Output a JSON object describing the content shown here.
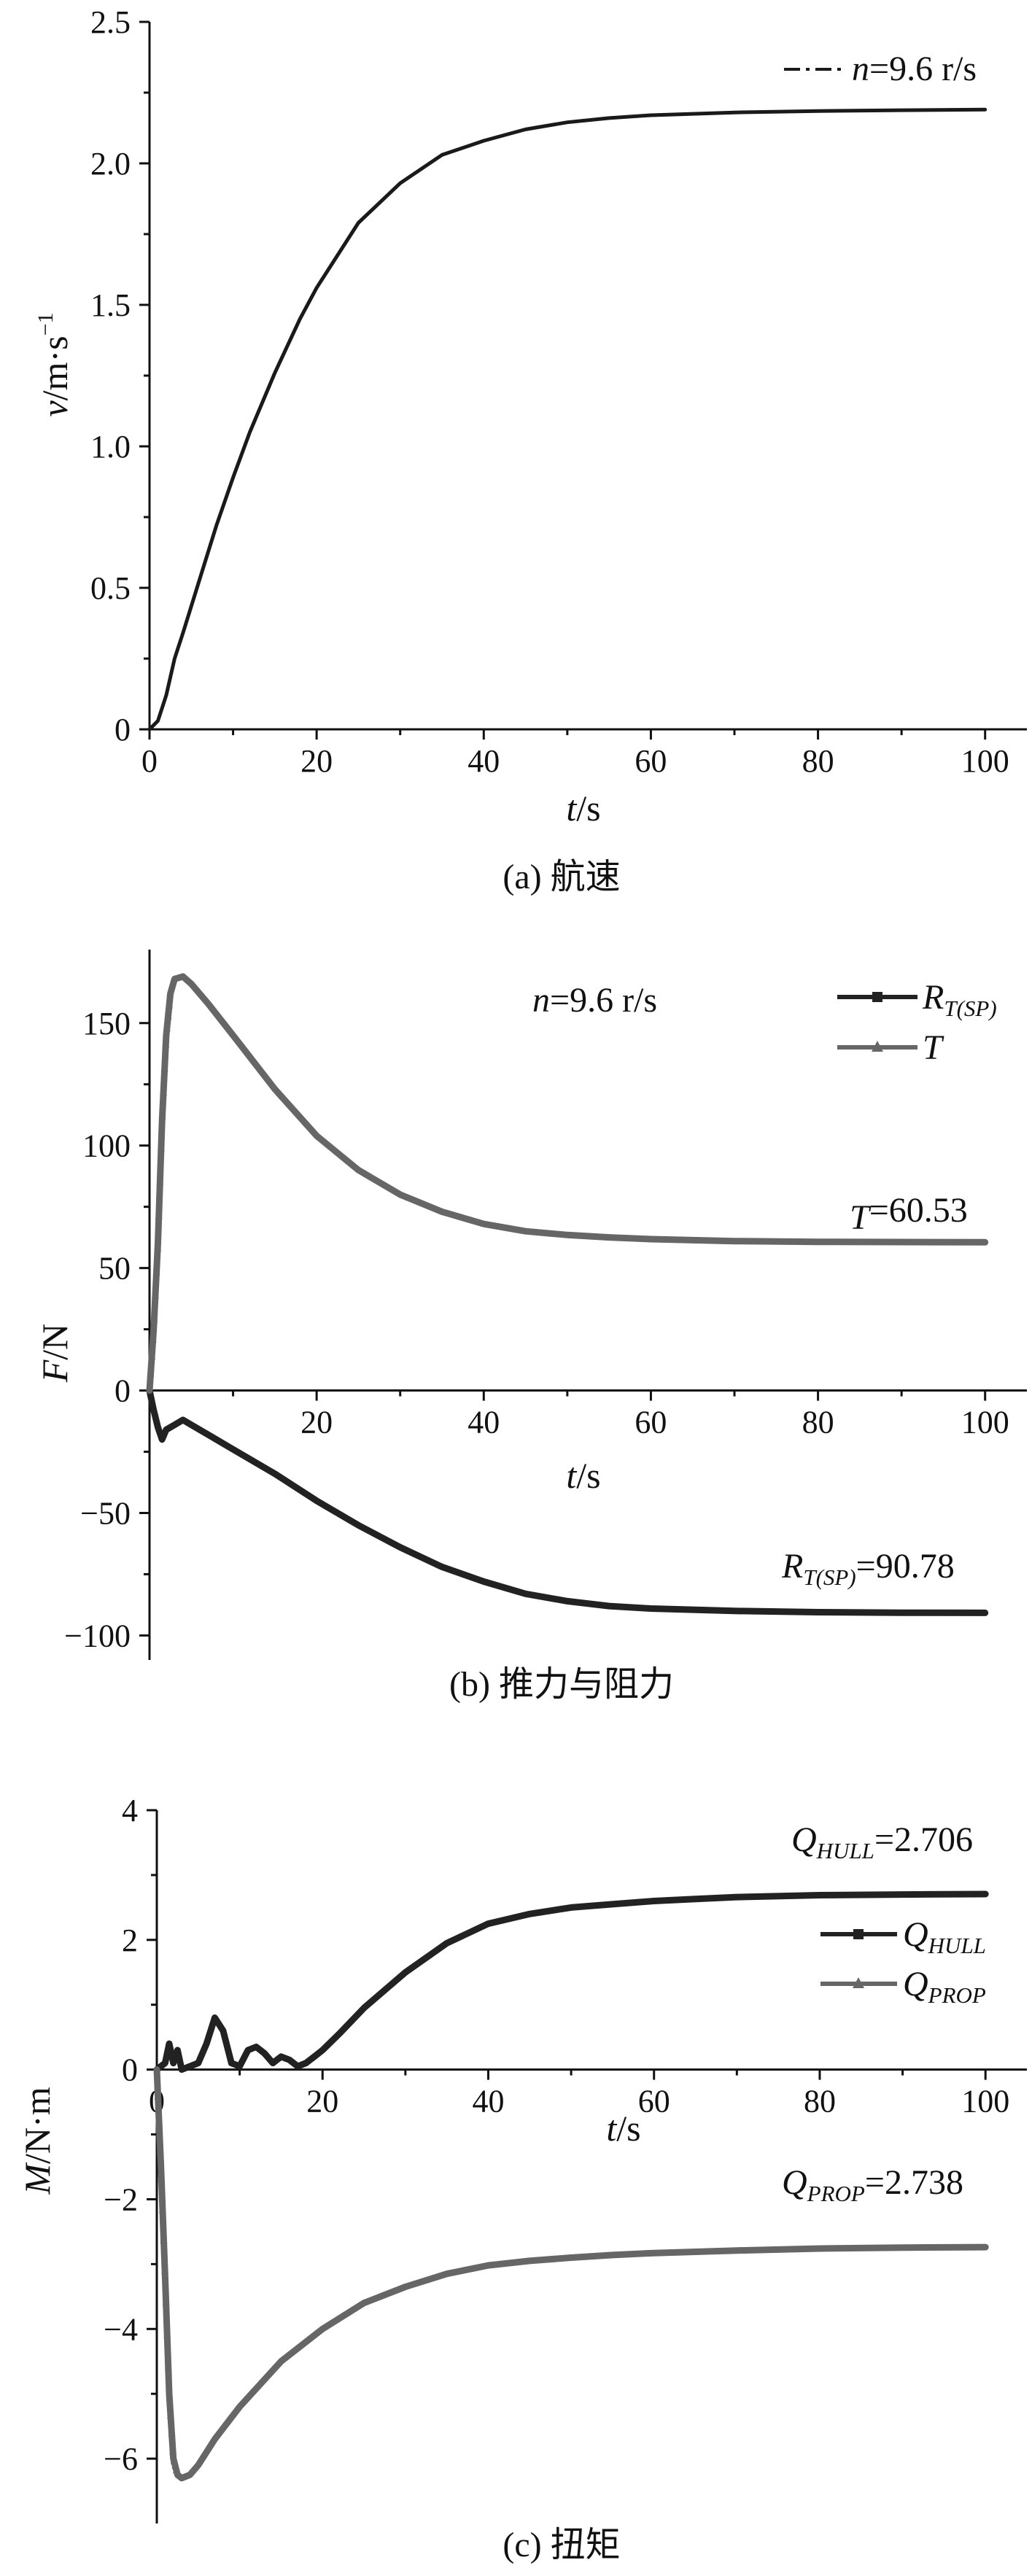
{
  "chart_data": [
    {
      "type": "line",
      "panel": "a",
      "caption": "(a) 航速",
      "xlabel": {
        "var": "t",
        "unit": "/s"
      },
      "ylabel": {
        "var": "v",
        "unit": "/m·s",
        "sup": "−1"
      },
      "xlim": [
        0,
        105
      ],
      "ylim": [
        0,
        2.5
      ],
      "xticks": [
        0,
        20,
        40,
        60,
        80,
        100
      ],
      "xtick_labels": [
        "0",
        "20",
        "40",
        "60",
        "80",
        "100"
      ],
      "yticks": [
        0,
        0.5,
        1.0,
        1.5,
        2.0,
        2.5
      ],
      "ytick_labels": [
        "0",
        "0.5",
        "1.0",
        "1.5",
        "2.0",
        "2.5"
      ],
      "legend": {
        "position": "top-right",
        "var": "n",
        "text": "=9.6 r/s"
      },
      "series": [
        {
          "name": "n=9.6 r/s",
          "color": "#1a1a1a",
          "style": "dash-dot",
          "x": [
            0,
            1,
            2,
            3,
            4,
            6,
            8,
            10,
            12,
            15,
            18,
            20,
            25,
            30,
            35,
            40,
            45,
            50,
            55,
            60,
            70,
            80,
            90,
            100
          ],
          "y": [
            0,
            0.03,
            0.12,
            0.25,
            0.34,
            0.53,
            0.72,
            0.89,
            1.05,
            1.26,
            1.45,
            1.56,
            1.79,
            1.93,
            2.03,
            2.08,
            2.12,
            2.145,
            2.16,
            2.17,
            2.18,
            2.185,
            2.188,
            2.19
          ]
        }
      ]
    },
    {
      "type": "line",
      "panel": "b",
      "caption": "(b) 推力与阻力",
      "xlabel": {
        "var": "t",
        "unit": "/s"
      },
      "ylabel": {
        "var": "F",
        "unit": "/N"
      },
      "xlim": [
        0,
        105
      ],
      "ylim": [
        -110,
        180
      ],
      "xticks": [
        20,
        40,
        60,
        80,
        100
      ],
      "xtick_labels": [
        "20",
        "40",
        "60",
        "80",
        "100"
      ],
      "yticks": [
        -100,
        -50,
        0,
        50,
        100,
        150
      ],
      "ytick_labels": [
        "−100",
        "−50",
        "0",
        "50",
        "100",
        "150"
      ],
      "annotation_top": {
        "var": "n",
        "text": "=9.6 r/s"
      },
      "legend": {
        "position": "top-right",
        "entries": [
          {
            "var": "R",
            "sub": "T(SP)"
          },
          {
            "var": "T",
            "sub": ""
          }
        ]
      },
      "value_labels": [
        {
          "var": "T",
          "sub": "",
          "text": "=60.53"
        },
        {
          "var": "R",
          "sub": "T(SP)",
          "text": "=90.78"
        }
      ],
      "series": [
        {
          "name": "R_T(SP)",
          "color": "#222222",
          "marker": "square",
          "x": [
            0,
            0.5,
            1,
            1.5,
            2,
            3,
            4,
            5,
            7,
            10,
            15,
            20,
            25,
            30,
            35,
            40,
            45,
            50,
            55,
            60,
            70,
            80,
            90,
            100
          ],
          "y": [
            0,
            -8,
            -15,
            -20,
            -16,
            -14,
            -12,
            -14,
            -18,
            -24,
            -34,
            -45,
            -55,
            -64,
            -72,
            -78,
            -83,
            -86,
            -88,
            -89,
            -90,
            -90.5,
            -90.7,
            -90.78
          ]
        },
        {
          "name": "T",
          "color": "#666666",
          "marker": "triangle",
          "x": [
            0,
            0.5,
            1,
            1.5,
            2,
            2.5,
            3,
            4,
            5,
            7,
            10,
            15,
            20,
            25,
            30,
            35,
            40,
            45,
            50,
            55,
            60,
            70,
            80,
            90,
            100
          ],
          "y": [
            0,
            25,
            60,
            110,
            145,
            162,
            168,
            169,
            166,
            158,
            145,
            123,
            104,
            90,
            80,
            73,
            68,
            65,
            63.5,
            62.5,
            61.8,
            61,
            60.7,
            60.6,
            60.53
          ]
        }
      ]
    },
    {
      "type": "line",
      "panel": "c",
      "caption": "(c) 扭矩",
      "xlabel": {
        "var": "t",
        "unit": "/s"
      },
      "ylabel": {
        "var": "M",
        "unit": "/N·m"
      },
      "xlim": [
        0,
        105
      ],
      "ylim": [
        -7,
        4
      ],
      "xticks": [
        0,
        20,
        40,
        60,
        80,
        100
      ],
      "xtick_labels": [
        "0",
        "20",
        "40",
        "60",
        "80",
        "100"
      ],
      "yticks": [
        -6,
        -4,
        -2,
        0,
        2,
        4
      ],
      "ytick_labels": [
        "−6",
        "−4",
        "−2",
        "0",
        "2",
        "4"
      ],
      "legend": {
        "position": "right",
        "entries": [
          {
            "var": "Q",
            "sub": "HULL"
          },
          {
            "var": "Q",
            "sub": "PROP"
          }
        ]
      },
      "value_labels": [
        {
          "var": "Q",
          "sub": "HULL",
          "text": "=2.706"
        },
        {
          "var": "Q",
          "sub": "PROP",
          "text": "=2.738"
        }
      ],
      "series": [
        {
          "name": "Q_HULL",
          "color": "#222222",
          "marker": "square",
          "x": [
            0,
            1,
            1.5,
            2,
            2.5,
            3,
            4,
            5,
            6,
            7,
            8,
            9,
            10,
            11,
            12,
            13,
            14,
            15,
            16,
            17,
            18,
            19,
            20,
            22,
            25,
            30,
            35,
            40,
            45,
            50,
            55,
            60,
            65,
            70,
            80,
            90,
            100
          ],
          "y": [
            0,
            0.1,
            0.4,
            0.1,
            0.3,
            0.0,
            0.05,
            0.1,
            0.4,
            0.8,
            0.6,
            0.1,
            0.05,
            0.3,
            0.35,
            0.25,
            0.1,
            0.2,
            0.15,
            0.05,
            0.1,
            0.2,
            0.3,
            0.55,
            0.95,
            1.5,
            1.95,
            2.25,
            2.4,
            2.5,
            2.55,
            2.6,
            2.63,
            2.66,
            2.69,
            2.7,
            2.706
          ]
        },
        {
          "name": "Q_PROP",
          "color": "#666666",
          "marker": "triangle",
          "x": [
            0,
            0.5,
            1,
            1.5,
            2,
            2.5,
            3,
            4,
            5,
            7,
            10,
            15,
            20,
            25,
            30,
            35,
            40,
            45,
            50,
            55,
            60,
            70,
            80,
            90,
            100
          ],
          "y": [
            0,
            -1.5,
            -3.2,
            -5.0,
            -6.0,
            -6.25,
            -6.3,
            -6.25,
            -6.1,
            -5.7,
            -5.2,
            -4.5,
            -4.0,
            -3.6,
            -3.35,
            -3.15,
            -3.02,
            -2.95,
            -2.9,
            -2.86,
            -2.83,
            -2.79,
            -2.76,
            -2.745,
            -2.738
          ]
        }
      ]
    }
  ]
}
